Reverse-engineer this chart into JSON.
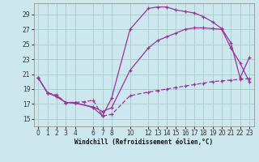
{
  "xlabel": "Windchill (Refroidissement éolien,°C)",
  "bg_color": "#cce8ee",
  "grid_color": "#aacccc",
  "line_color": "#993399",
  "xlim": [
    -0.5,
    23.5
  ],
  "ylim": [
    14.0,
    30.5
  ],
  "xticks": [
    0,
    1,
    2,
    3,
    4,
    6,
    7,
    8,
    10,
    12,
    13,
    14,
    15,
    16,
    17,
    18,
    19,
    20,
    21,
    22,
    23
  ],
  "yticks": [
    15,
    17,
    19,
    21,
    23,
    25,
    27,
    29
  ],
  "series1_x": [
    0,
    1,
    2,
    3,
    4,
    6,
    7,
    8,
    10,
    12,
    13,
    14,
    15,
    16,
    17,
    18,
    19,
    20,
    21,
    22,
    23
  ],
  "series1_y": [
    20.5,
    18.5,
    18.0,
    17.2,
    17.2,
    16.5,
    15.4,
    17.8,
    27.0,
    29.8,
    30.0,
    30.0,
    29.6,
    29.4,
    29.2,
    28.7,
    28.0,
    27.1,
    25.2,
    20.5,
    23.2
  ],
  "series2_x": [
    0,
    1,
    2,
    3,
    4,
    6,
    7,
    8,
    10,
    12,
    13,
    14,
    15,
    16,
    17,
    18,
    19,
    20,
    21,
    22,
    23
  ],
  "series2_y": [
    20.5,
    18.5,
    18.0,
    17.2,
    17.1,
    16.6,
    16.0,
    16.5,
    21.5,
    24.5,
    25.5,
    26.0,
    26.5,
    27.0,
    27.2,
    27.2,
    27.1,
    27.0,
    24.5,
    22.5,
    20.0
  ],
  "series3_x": [
    0,
    1,
    2,
    3,
    4,
    5,
    6,
    7,
    8,
    10,
    12,
    13,
    14,
    15,
    16,
    17,
    18,
    19,
    20,
    21,
    22,
    23
  ],
  "series3_y": [
    20.5,
    18.5,
    18.2,
    17.2,
    17.2,
    17.3,
    17.5,
    15.4,
    15.6,
    18.1,
    18.6,
    18.8,
    19.0,
    19.2,
    19.4,
    19.6,
    19.8,
    20.0,
    20.1,
    20.2,
    20.3,
    20.4
  ]
}
